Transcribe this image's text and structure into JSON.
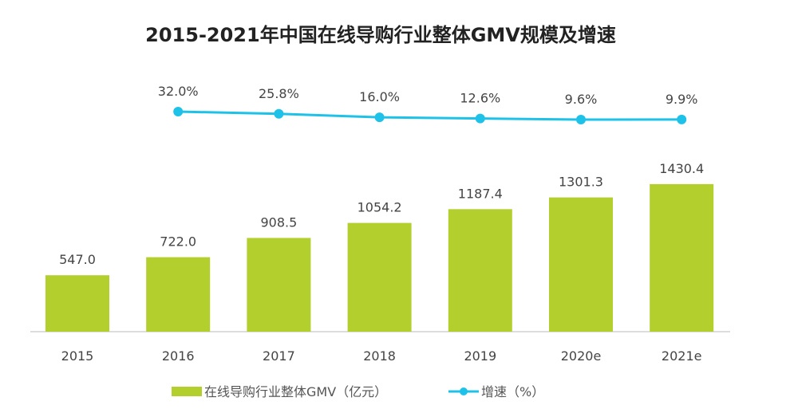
{
  "chart_data": {
    "type": "bar+line",
    "title": "2015-2021年中国在线导购行业整体GMV规模及增速",
    "categories": [
      "2015",
      "2016",
      "2017",
      "2018",
      "2019",
      "2020e",
      "2021e"
    ],
    "series": [
      {
        "name": "在线导购行业整体GMV（亿元）",
        "type": "bar",
        "values": [
          547.0,
          722.0,
          908.5,
          1054.2,
          1187.4,
          1301.3,
          1430.4
        ],
        "labels": [
          "547.0",
          "722.0",
          "908.5",
          "1054.2",
          "1187.4",
          "1301.3",
          "1430.4"
        ],
        "color": "#b2cf2e"
      },
      {
        "name": "增速（%）",
        "type": "line",
        "values": [
          null,
          32.0,
          25.8,
          16.0,
          12.6,
          9.6,
          9.9
        ],
        "labels": [
          "",
          "32.0%",
          "25.8%",
          "16.0%",
          "12.6%",
          "9.6%",
          "9.9%"
        ],
        "color": "#1ec2e8"
      }
    ],
    "grid": false,
    "legend": "bottom"
  }
}
